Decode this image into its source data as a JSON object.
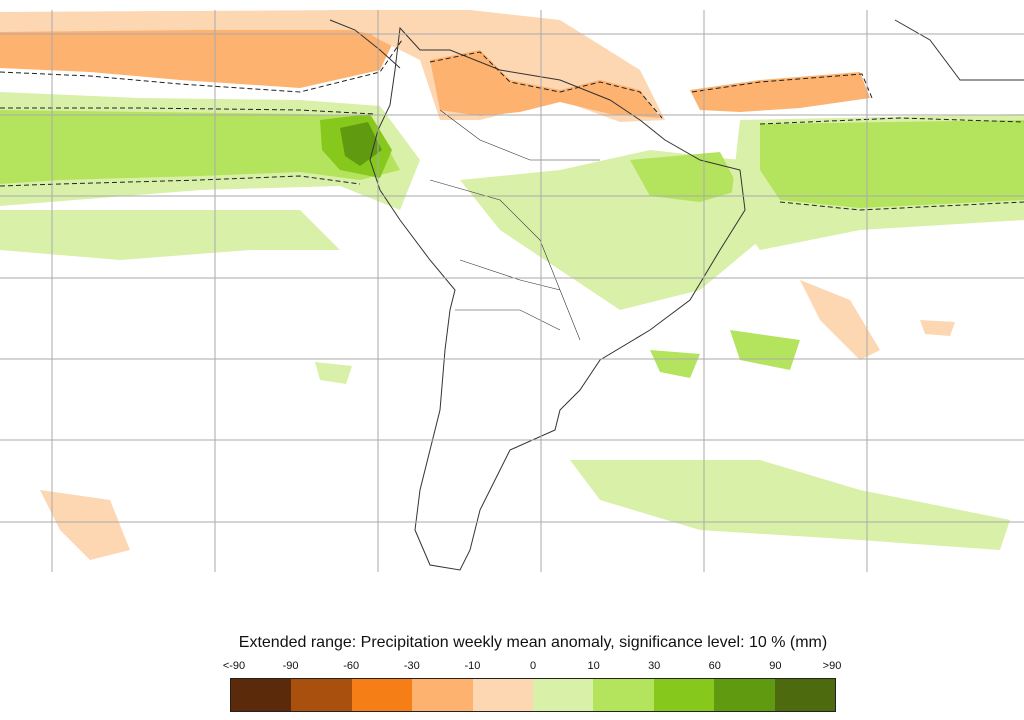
{
  "legend": {
    "title": "Extended range: Precipitation weekly mean anomaly, significance level: 10 % (mm)",
    "tick_labels": [
      "<-90",
      "-90",
      "-60",
      "-30",
      "-10",
      "0",
      "10",
      "30",
      "60",
      "90",
      ">90"
    ],
    "colors": [
      "#5a2a0a",
      "#a9500f",
      "#f57f16",
      "#fdb26f",
      "#fdd6b2",
      "#d9f0a8",
      "#b4e35e",
      "#86c81c",
      "#5f9a10",
      "#4d6b0e"
    ]
  },
  "map": {
    "region": "South America",
    "variable": "Precipitation weekly mean anomaly",
    "significance_contour": "dashed-black",
    "grid": true
  }
}
